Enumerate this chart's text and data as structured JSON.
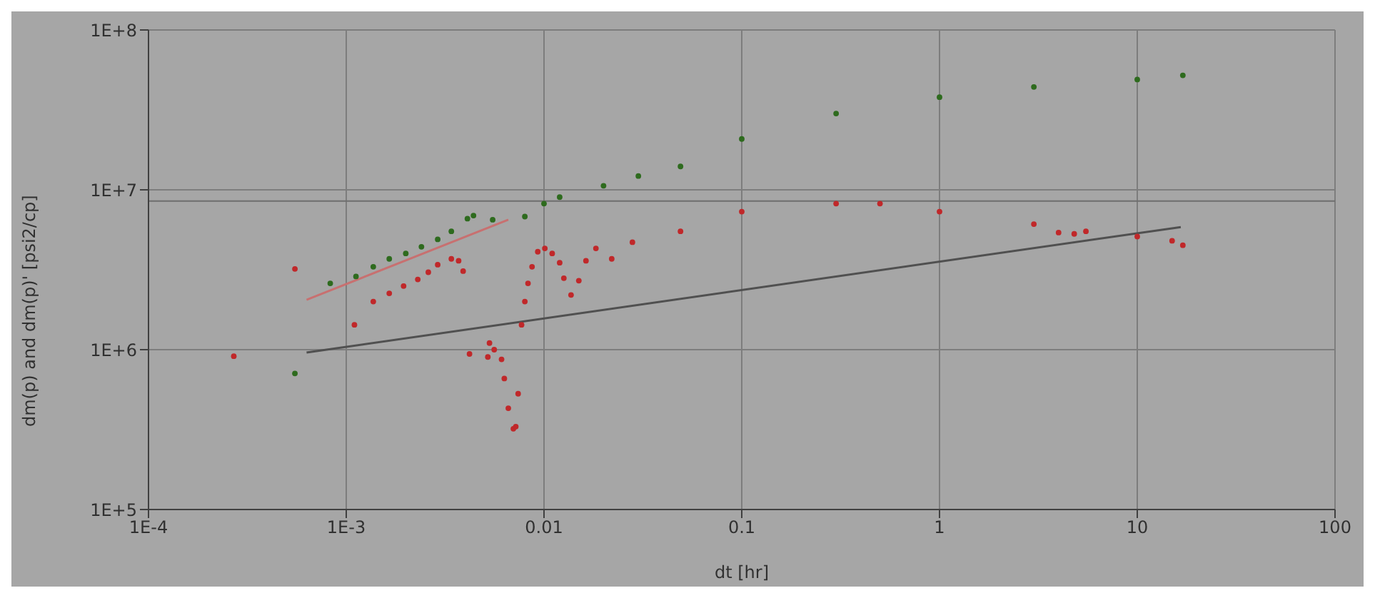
{
  "chart_data": {
    "type": "scatter",
    "xlabel": "dt [hr]",
    "ylabel": "dm(p) and dm(p)' [psi2/cp]",
    "log": "xy",
    "grid": true,
    "xlim": [
      0.0001,
      100
    ],
    "ylim": [
      100000,
      100000000
    ],
    "xticks": [
      {
        "value": 0.0001,
        "label": "1E-4"
      },
      {
        "value": 0.001,
        "label": "1E-3"
      },
      0.01,
      0.1,
      1,
      10,
      100
    ],
    "yticks": [
      {
        "value": 100000,
        "label": "1E+5"
      },
      {
        "value": 1000000,
        "label": "1E+6"
      },
      {
        "value": 10000000,
        "label": "1E+7"
      },
      {
        "value": 100000000,
        "label": "1E+8"
      }
    ],
    "ref_lines": [
      {
        "axis": "y",
        "value": 8500000,
        "color": "#6e6e6e"
      }
    ],
    "series": [
      {
        "marker": "circle",
        "color": "#2e6b1e",
        "x": [
          0.00055,
          0.00083,
          0.00112,
          0.00137,
          0.00165,
          0.002,
          0.0024,
          0.0029,
          0.0034,
          0.0041,
          0.0044,
          0.0055,
          0.008,
          0.01,
          0.012,
          0.02,
          0.03,
          0.049,
          0.1,
          0.3,
          1,
          3,
          10,
          17
        ],
        "values": [
          710000,
          2600000,
          2870000,
          3300000,
          3700000,
          4000000,
          4400000,
          4900000,
          5500000,
          6600000,
          6900000,
          6500000,
          6800000,
          8200000,
          9000000,
          10600000,
          12200000,
          14000000,
          20800000,
          30000000,
          38000000,
          44000000,
          49000000,
          52000000
        ]
      },
      {
        "marker": "circle",
        "color": "#c0282a",
        "x": [
          0.00027,
          0.00055,
          0.0011,
          0.00137,
          0.00165,
          0.00195,
          0.0023,
          0.0026,
          0.0029,
          0.0034,
          0.0037,
          0.0039,
          0.0042,
          0.0052,
          0.0053,
          0.0056,
          0.0061,
          0.0063,
          0.0066,
          0.007,
          0.0072,
          0.0074,
          0.0077,
          0.008,
          0.0083,
          0.0087,
          0.0093,
          0.0101,
          0.011,
          0.012,
          0.0126,
          0.0137,
          0.015,
          0.0163,
          0.0183,
          0.022,
          0.028,
          0.049,
          0.1,
          0.3,
          0.5,
          1,
          3,
          4,
          4.8,
          5.5,
          10,
          15,
          17
        ],
        "values": [
          910000,
          3200000,
          1430000,
          2000000,
          2250000,
          2500000,
          2750000,
          3050000,
          3400000,
          3700000,
          3600000,
          3100000,
          940000,
          900000,
          1100000,
          1000000,
          870000,
          660000,
          430000,
          320000,
          330000,
          530000,
          1430000,
          2000000,
          2600000,
          3300000,
          4100000,
          4300000,
          4000000,
          3500000,
          2800000,
          2200000,
          2700000,
          3600000,
          4300000,
          3700000,
          4700000,
          5500000,
          7300000,
          8200000,
          8200000,
          7300000,
          6100000,
          5400000,
          5300000,
          5500000,
          5100000,
          4800000,
          4500000
        ]
      },
      {
        "type": "line",
        "marker": "none",
        "color": "#c87070",
        "x": [
          0.00063,
          0.0066
        ],
        "values": [
          2050000,
          6500000
        ]
      },
      {
        "type": "line",
        "marker": "none",
        "color": "#505050",
        "x": [
          0.00063,
          16.6
        ],
        "values": [
          960000,
          5850000
        ]
      }
    ]
  }
}
